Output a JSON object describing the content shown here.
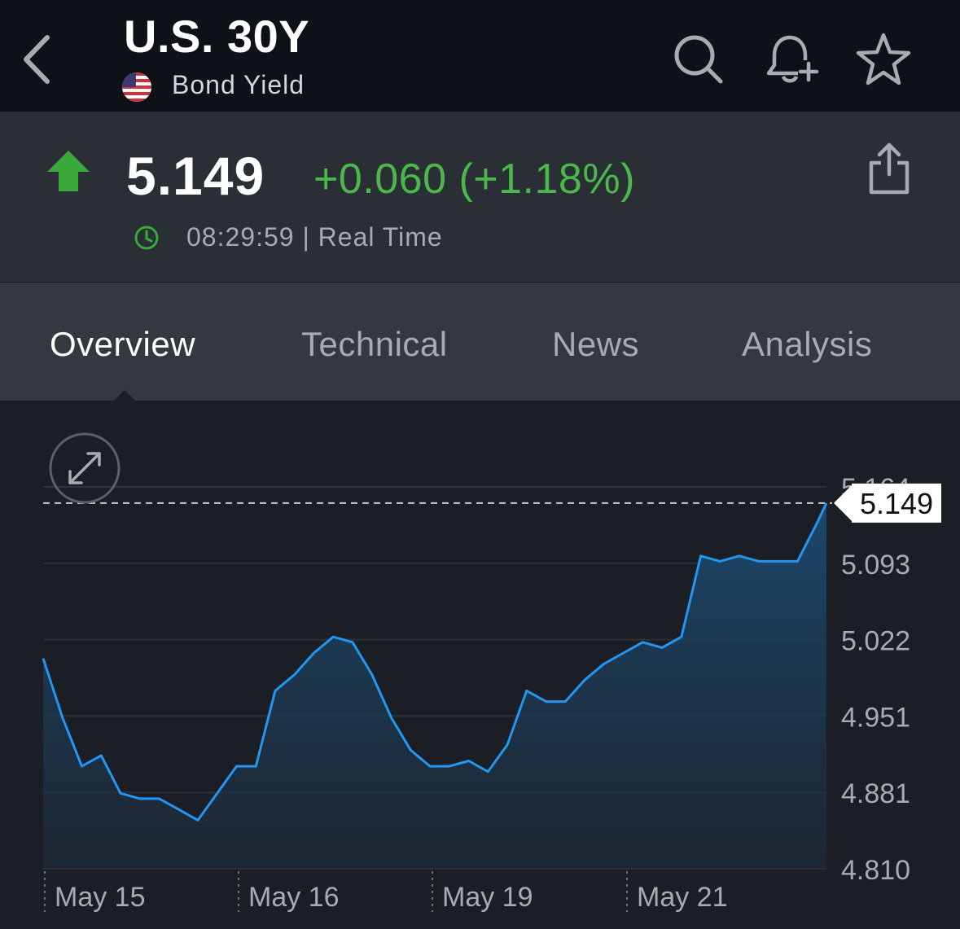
{
  "header": {
    "title": "U.S. 30Y",
    "subtitle": "Bond Yield",
    "icons": [
      "back-icon",
      "search-icon",
      "bell-plus-icon",
      "star-icon"
    ]
  },
  "quote": {
    "price": "5.149",
    "change": "+0.060 (+1.18%)",
    "time": "08:29:59 | Real Time",
    "up_color": "#3aa93a",
    "change_color": "#4cb74a"
  },
  "tabs": [
    {
      "label": "Overview",
      "active": true
    },
    {
      "label": "Technical",
      "active": false
    },
    {
      "label": "News",
      "active": false
    },
    {
      "label": "Analysis",
      "active": false
    }
  ],
  "chart_data": {
    "type": "area",
    "line_color": "#2196f3",
    "current_value": 5.149,
    "current_label": "5.149",
    "y_ticks": [
      "5.164",
      "5.093",
      "5.022",
      "4.951",
      "4.881",
      "4.810"
    ],
    "ylim": [
      4.81,
      5.164
    ],
    "x_labels": [
      "May 15",
      "May 16",
      "May 19",
      "May 21"
    ],
    "x": [
      0,
      10,
      20,
      30,
      40,
      50,
      60,
      70,
      80,
      90,
      100,
      110,
      120,
      130,
      140,
      150,
      160,
      170,
      180,
      190,
      200,
      210,
      220,
      230,
      240,
      250,
      260,
      270,
      280,
      290,
      300,
      310,
      320,
      330,
      340,
      350,
      360,
      370,
      380,
      390,
      400,
      405
    ],
    "values": [
      5.005,
      4.95,
      4.905,
      4.915,
      4.88,
      4.875,
      4.875,
      4.865,
      4.855,
      4.88,
      4.905,
      4.905,
      4.975,
      4.99,
      5.01,
      5.025,
      5.02,
      4.99,
      4.95,
      4.92,
      4.905,
      4.905,
      4.91,
      4.9,
      4.925,
      4.975,
      4.965,
      4.965,
      4.985,
      5.0,
      5.01,
      5.02,
      5.015,
      5.025,
      5.1,
      5.095,
      5.1,
      5.095,
      5.095,
      5.095,
      5.13,
      5.149
    ]
  }
}
